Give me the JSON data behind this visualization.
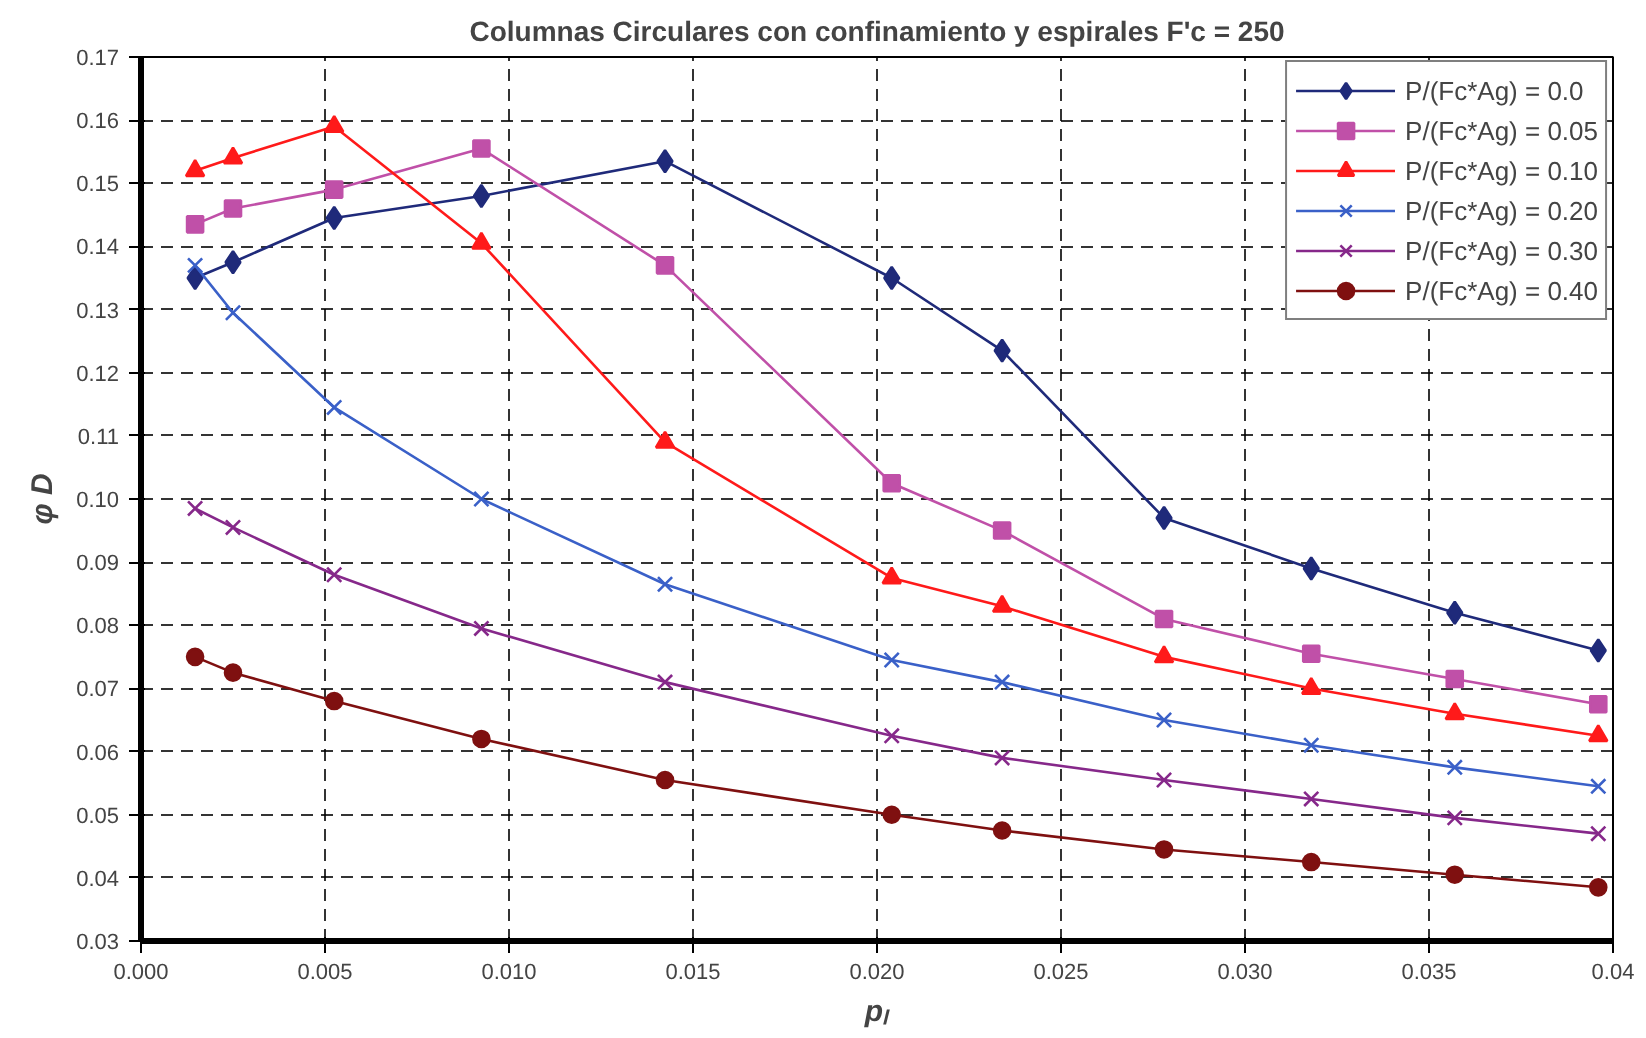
{
  "chart_data": {
    "type": "line",
    "title": "Columnas Circulares con confinamiento y espirales F'c = 250",
    "xlabel": "pₗ",
    "ylabel": "φ D",
    "x": [
      0.00147,
      0.0025,
      0.00525,
      0.00925,
      0.01424,
      0.0204,
      0.0234,
      0.0278,
      0.0318,
      0.0357,
      0.0396
    ],
    "series": [
      {
        "name": "P/(Fc*Ag) = 0.0",
        "color": "#1f2a7a",
        "marker": "diamond",
        "values": [
          0.135,
          0.1375,
          0.1445,
          0.148,
          0.1535,
          0.135,
          0.1235,
          0.097,
          0.089,
          0.082,
          0.076
        ]
      },
      {
        "name": "P/(Fc*Ag) = 0.05",
        "color": "#c050a8",
        "marker": "square",
        "values": [
          0.1435,
          0.146,
          0.149,
          0.1555,
          0.137,
          0.1025,
          0.095,
          0.081,
          0.0755,
          0.0715,
          0.0675
        ]
      },
      {
        "name": "P/(Fc*Ag) = 0.10",
        "color": "#ff1a1a",
        "marker": "triangle",
        "values": [
          0.152,
          0.154,
          0.159,
          0.1405,
          0.109,
          0.0875,
          0.083,
          0.075,
          0.07,
          0.066,
          0.0625
        ]
      },
      {
        "name": "P/(Fc*Ag) = 0.20",
        "color": "#3a60c8",
        "marker": "cross",
        "values": [
          0.137,
          0.1295,
          0.1145,
          0.1,
          0.0865,
          0.0745,
          0.071,
          0.065,
          0.061,
          0.0575,
          0.0545
        ]
      },
      {
        "name": "P/(Fc*Ag) = 0.30",
        "color": "#86288a",
        "marker": "cross",
        "values": [
          0.0985,
          0.0955,
          0.088,
          0.0795,
          0.071,
          0.0625,
          0.059,
          0.0555,
          0.0525,
          0.0495,
          0.047
        ]
      },
      {
        "name": "P/(Fc*Ag) = 0.40",
        "color": "#7f1010",
        "marker": "circle",
        "values": [
          0.075,
          0.0725,
          0.068,
          0.062,
          0.0555,
          0.05,
          0.0475,
          0.0445,
          0.0425,
          0.0405,
          0.0385
        ]
      }
    ],
    "xlim": [
      0,
      0.04
    ],
    "xticks": [
      {
        "value": 0,
        "label": "0.000"
      },
      {
        "value": 0.005,
        "label": "0.005"
      },
      {
        "value": 0.01,
        "label": "0.010"
      },
      {
        "value": 0.015,
        "label": "0.015"
      },
      {
        "value": 0.02,
        "label": "0.020"
      },
      {
        "value": 0.025,
        "label": "0.025"
      },
      {
        "value": 0.03,
        "label": "0.030"
      },
      {
        "value": 0.035,
        "label": "0.035"
      },
      {
        "value": 0.04,
        "label": "0.04"
      }
    ],
    "ylim": [
      0.03,
      0.17
    ],
    "yticks": [
      0.03,
      0.04,
      0.05,
      0.06,
      0.07,
      0.08,
      0.09,
      {
        "value": 0.1,
        "label": "0.10"
      },
      0.11,
      0.12,
      0.13,
      0.14,
      0.15,
      0.16,
      0.17
    ],
    "grid": true,
    "legend": "top right",
    "line_style": "solid"
  }
}
